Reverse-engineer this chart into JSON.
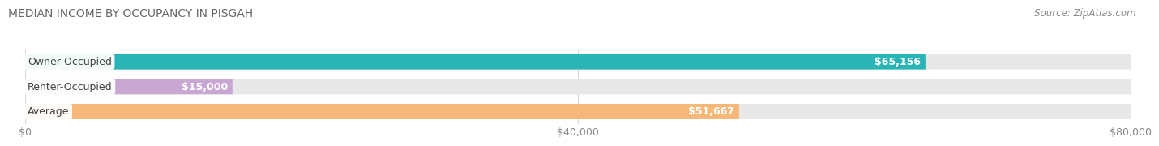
{
  "title": "MEDIAN INCOME BY OCCUPANCY IN PISGAH",
  "source": "Source: ZipAtlas.com",
  "categories": [
    "Owner-Occupied",
    "Renter-Occupied",
    "Average"
  ],
  "values": [
    65156,
    15000,
    51667
  ],
  "labels": [
    "$65,156",
    "$15,000",
    "$51,667"
  ],
  "bar_colors": [
    "#29b5b5",
    "#c8a8d2",
    "#f5b878"
  ],
  "xlim": [
    0,
    80000
  ],
  "xticks": [
    0,
    40000,
    80000
  ],
  "xtick_labels": [
    "$0",
    "$40,000",
    "$80,000"
  ],
  "title_fontsize": 10,
  "source_fontsize": 8.5,
  "label_fontsize": 9,
  "value_fontsize": 9,
  "tick_fontsize": 9,
  "bar_height": 0.62,
  "background_color": "#ffffff",
  "grid_color": "#d8d8d8",
  "bar_bg_color": "#e8e8e8"
}
